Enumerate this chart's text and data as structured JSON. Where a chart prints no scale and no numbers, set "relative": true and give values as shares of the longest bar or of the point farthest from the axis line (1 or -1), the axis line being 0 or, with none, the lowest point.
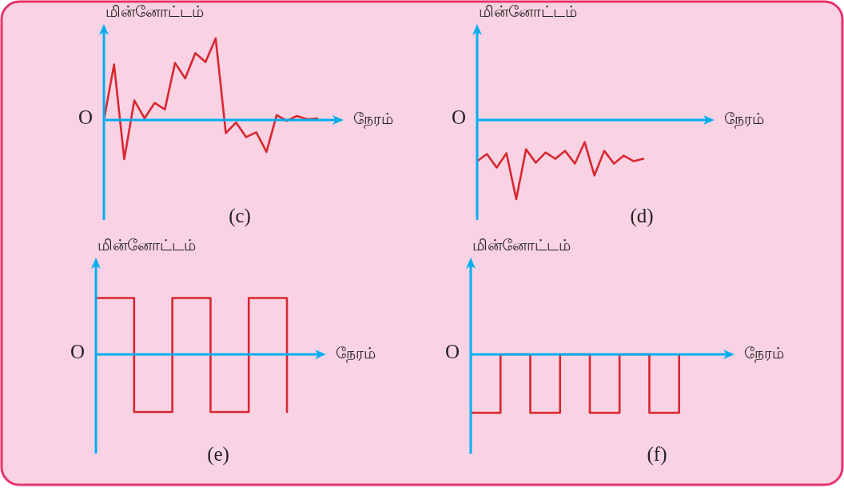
{
  "chart_data": [
    {
      "type": "line",
      "relative": true,
      "xlabel": "நேரம்",
      "ylabel": "மின்னோட்டம்",
      "annotations": [
        "O",
        "(c)"
      ],
      "ref_lines": [
        {
          "axis": "y",
          "value": 0,
          "color": "#00aeef"
        }
      ],
      "categories": [
        null,
        null,
        null,
        null,
        null,
        null,
        null,
        null,
        null,
        null,
        null,
        null,
        null,
        null,
        null,
        null,
        null,
        null,
        null,
        null,
        null,
        null
      ],
      "series": [
        {
          "color": "#d7282f",
          "values": [
            0,
            0.68,
            -0.48,
            0.24,
            0.02,
            0.21,
            0.13,
            0.7,
            0.51,
            0.82,
            0.71,
            1,
            -0.16,
            -0.03,
            -0.21,
            -0.15,
            -0.39,
            0.06,
            -0.01,
            0.05,
            0.01,
            0.02
          ]
        }
      ]
    },
    {
      "type": "line",
      "relative": true,
      "xlabel": "நேரம்",
      "ylabel": "மின்னோட்டம்",
      "annotations": [
        "O",
        "(d)"
      ],
      "ref_lines": [
        {
          "axis": "y",
          "value": 0,
          "color": "#00aeef"
        }
      ],
      "categories": [
        null,
        null,
        null,
        null,
        null,
        null,
        null,
        null,
        null,
        null,
        null,
        null,
        null,
        null,
        null,
        null,
        null,
        null
      ],
      "series": [
        {
          "color": "#d7282f",
          "values": [
            -0.52,
            -0.43,
            -0.6,
            -0.42,
            -1,
            -0.37,
            -0.54,
            -0.41,
            -0.49,
            -0.39,
            -0.55,
            -0.28,
            -0.7,
            -0.39,
            -0.55,
            -0.45,
            -0.52,
            -0.49
          ]
        }
      ]
    },
    {
      "type": "step",
      "relative": true,
      "xlabel": "நேரம்",
      "ylabel": "மின்னோட்டம்",
      "annotations": [
        "O",
        "(e)"
      ],
      "ref_lines": [
        {
          "axis": "y",
          "value": 0,
          "color": "#00aeef"
        }
      ],
      "categories": [
        null,
        null,
        null,
        null,
        null,
        null
      ],
      "series": [
        {
          "color": "#d7282f",
          "values": [
            0.98,
            -1,
            0.98,
            -1,
            0.98,
            -1
          ]
        }
      ]
    },
    {
      "type": "step",
      "relative": true,
      "xlabel": "நேரம்",
      "ylabel": "மின்னோட்டம்",
      "annotations": [
        "O",
        "(f)"
      ],
      "ref_lines": [
        {
          "axis": "y",
          "value": 0,
          "color": "#00aeef"
        }
      ],
      "categories": [
        null,
        null,
        null,
        null,
        null,
        null,
        null,
        null
      ],
      "series": [
        {
          "color": "#d7282f",
          "values": [
            -1,
            0,
            -1,
            0,
            -1,
            0,
            -1,
            0
          ]
        }
      ]
    }
  ]
}
